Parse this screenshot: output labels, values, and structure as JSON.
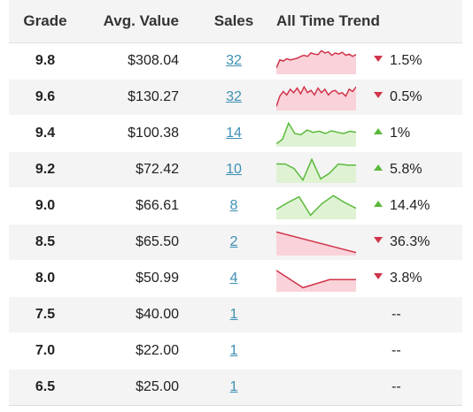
{
  "table": {
    "headers": {
      "grade": "Grade",
      "avg_value": "Avg. Value",
      "sales": "Sales",
      "trend": "All Time Trend"
    },
    "colors": {
      "down": "#d0344a",
      "down_fill": "#f9d3d9",
      "up": "#5ab93a",
      "up_fill": "#dff3d4",
      "link": "#3d8fb3"
    },
    "rows": [
      {
        "grade": "9.8",
        "avg_value": "$308.04",
        "sales": "32",
        "change": "1.5%",
        "direction": "down",
        "trend": [
          0.2,
          0.55,
          0.5,
          0.6,
          0.55,
          0.58,
          0.62,
          0.7,
          0.75,
          0.7,
          0.85,
          0.8,
          0.78,
          0.95,
          0.85,
          0.9,
          0.75,
          0.85,
          0.8,
          0.88,
          0.75,
          0.8,
          0.7,
          0.78
        ]
      },
      {
        "grade": "9.6",
        "avg_value": "$130.27",
        "sales": "32",
        "change": "0.5%",
        "direction": "down",
        "trend": [
          0.1,
          0.55,
          0.75,
          0.6,
          0.85,
          0.7,
          0.9,
          0.65,
          0.95,
          0.7,
          0.8,
          0.6,
          0.9,
          0.7,
          0.85,
          0.6,
          0.75,
          0.8,
          0.65,
          0.7,
          0.55,
          0.85,
          0.75,
          0.95
        ]
      },
      {
        "grade": "9.4",
        "avg_value": "$100.38",
        "sales": "14",
        "change": "1%",
        "direction": "up",
        "trend": [
          0.05,
          0.25,
          0.95,
          0.5,
          0.45,
          0.65,
          0.55,
          0.6,
          0.5,
          0.62,
          0.55,
          0.5,
          0.6,
          0.55
        ]
      },
      {
        "grade": "9.2",
        "avg_value": "$72.42",
        "sales": "10",
        "change": "5.8%",
        "direction": "up",
        "trend": [
          0.75,
          0.75,
          0.55,
          0.05,
          0.95,
          0.1,
          0.35,
          0.75,
          0.7,
          0.7
        ]
      },
      {
        "grade": "9.0",
        "avg_value": "$66.61",
        "sales": "8",
        "change": "14.4%",
        "direction": "up",
        "trend": [
          0.35,
          0.65,
          0.9,
          0.1,
          0.6,
          0.95,
          0.65,
          0.4
        ]
      },
      {
        "grade": "8.5",
        "avg_value": "$65.50",
        "sales": "2",
        "change": "36.3%",
        "direction": "down",
        "trend": [
          0.95,
          0.05
        ]
      },
      {
        "grade": "8.0",
        "avg_value": "$50.99",
        "sales": "4",
        "change": "3.8%",
        "direction": "down",
        "trend": [
          0.85,
          0.1,
          0.45,
          0.45
        ]
      },
      {
        "grade": "7.5",
        "avg_value": "$40.00",
        "sales": "1",
        "change": "--",
        "direction": "none",
        "trend": []
      },
      {
        "grade": "7.0",
        "avg_value": "$22.00",
        "sales": "1",
        "change": "--",
        "direction": "none",
        "trend": []
      },
      {
        "grade": "6.5",
        "avg_value": "$25.00",
        "sales": "1",
        "change": "--",
        "direction": "none",
        "trend": []
      }
    ]
  }
}
